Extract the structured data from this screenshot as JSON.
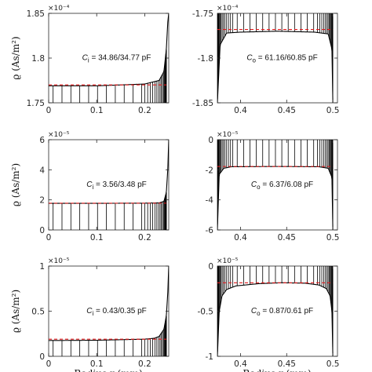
{
  "figure": {
    "ylabel": "ϱ (As/m²)",
    "xlabel_fragment": "Radius r (mm)"
  },
  "colors": {
    "line": "#000000",
    "avg": "#e31a1c",
    "axis": "#262626",
    "bg": "#ffffff"
  },
  "chart_data": [
    {
      "id": "inner-1",
      "type": "line",
      "column": "left",
      "row": 0,
      "xlim": [
        0,
        0.25
      ],
      "ylim": [
        1.75,
        1.85
      ],
      "exponent": "×10⁻⁴",
      "xticks": [
        "0",
        "0.1",
        "0.2"
      ],
      "xtick_values": [
        0,
        0.1,
        0.2
      ],
      "yticks": [
        "1.75",
        "1.8",
        "1.85"
      ],
      "ytick_values": [
        1.75,
        1.8,
        1.85
      ],
      "annotation": "Cᵢ = 34.86/34.77 pF",
      "annotation_var": "C",
      "annotation_sub": "i",
      "annotation_rest": " = 34.86/34.77 pF",
      "baseline": 1.75,
      "avg": 1.77,
      "avg_range": [
        0.0,
        0.245
      ],
      "series": [
        {
          "x": [
            0,
            0.1,
            0.2,
            0.23,
            0.24,
            0.245,
            0.248,
            0.25
          ],
          "y": [
            1.769,
            1.769,
            1.771,
            1.775,
            1.785,
            1.81,
            1.84,
            1.85
          ]
        }
      ]
    },
    {
      "id": "outer-1",
      "type": "line",
      "column": "right",
      "row": 0,
      "xlim": [
        0.375,
        0.505
      ],
      "ylim": [
        -1.85,
        -1.75
      ],
      "exponent": "×10⁻⁴",
      "xticks": [
        "0.4",
        "0.45",
        "0.5"
      ],
      "xtick_values": [
        0.4,
        0.45,
        0.5
      ],
      "yticks": [
        "-1.75",
        "-1.8",
        "-1.85"
      ],
      "ytick_values": [
        -1.75,
        -1.8,
        -1.85
      ],
      "annotation": "Cₒ = 61.16/60.85 pF",
      "annotation_var": "C",
      "annotation_sub": "o",
      "annotation_rest": " = 61.16/60.85 pF",
      "baseline": -1.75,
      "avg": -1.768,
      "avg_range": [
        0.375,
        0.5
      ],
      "series": [
        {
          "x": [
            0.375,
            0.378,
            0.385,
            0.4,
            0.44,
            0.48,
            0.495,
            0.499,
            0.5
          ],
          "y": [
            -1.85,
            -1.785,
            -1.772,
            -1.771,
            -1.77,
            -1.771,
            -1.773,
            -1.79,
            -1.85
          ]
        }
      ]
    },
    {
      "id": "inner-2",
      "type": "line",
      "column": "left",
      "row": 1,
      "xlim": [
        0,
        0.25
      ],
      "ylim": [
        0,
        6
      ],
      "exponent": "×10⁻⁵",
      "xticks": [
        "0",
        "0.1",
        "0.2"
      ],
      "xtick_values": [
        0,
        0.1,
        0.2
      ],
      "yticks": [
        "0",
        "2",
        "4",
        "6"
      ],
      "ytick_values": [
        0,
        2,
        4,
        6
      ],
      "annotation": "Cᵢ = 3.56/3.48 pF",
      "annotation_var": "C",
      "annotation_sub": "i",
      "annotation_rest": " = 3.56/3.48 pF",
      "baseline": 0,
      "avg": 1.78,
      "avg_range": [
        0.0,
        0.245
      ],
      "series": [
        {
          "x": [
            0,
            0.1,
            0.2,
            0.23,
            0.24,
            0.245,
            0.248,
            0.25
          ],
          "y": [
            1.77,
            1.77,
            1.78,
            1.8,
            1.9,
            2.5,
            4,
            6
          ]
        }
      ]
    },
    {
      "id": "outer-2",
      "type": "line",
      "column": "right",
      "row": 1,
      "xlim": [
        0.375,
        0.505
      ],
      "ylim": [
        -6,
        0
      ],
      "exponent": "×10⁻⁵",
      "xticks": [
        "0.4",
        "0.45",
        "0.5"
      ],
      "xtick_values": [
        0.4,
        0.45,
        0.5
      ],
      "yticks": [
        "0",
        "-2",
        "-4",
        "-6"
      ],
      "ytick_values": [
        0,
        -2,
        -4,
        -6
      ],
      "annotation": "Cₒ = 6.37/6.08 pF",
      "annotation_var": "C",
      "annotation_sub": "o",
      "annotation_rest": " = 6.37/6.08 pF",
      "baseline": 0,
      "avg": -1.78,
      "avg_range": [
        0.375,
        0.5
      ],
      "series": [
        {
          "x": [
            0.375,
            0.377,
            0.382,
            0.39,
            0.44,
            0.485,
            0.495,
            0.499,
            0.5
          ],
          "y": [
            -6,
            -2.3,
            -1.9,
            -1.8,
            -1.78,
            -1.8,
            -1.9,
            -2.5,
            -6
          ]
        }
      ]
    },
    {
      "id": "inner-3",
      "type": "line",
      "column": "left",
      "row": 2,
      "xlim": [
        0,
        0.25
      ],
      "ylim": [
        0,
        1
      ],
      "exponent": "×10⁻⁵",
      "xticks": [
        "0",
        "0.1",
        "0.2"
      ],
      "xtick_values": [
        0,
        0.1,
        0.2
      ],
      "yticks": [
        "0",
        "0.5",
        "1"
      ],
      "ytick_values": [
        0,
        0.5,
        1
      ],
      "annotation": "Cᵢ = 0.43/0.35 pF",
      "annotation_var": "C",
      "annotation_sub": "i",
      "annotation_rest": " = 0.43/0.35 pF",
      "baseline": 0,
      "avg": 0.19,
      "avg_range": [
        0.0,
        0.245
      ],
      "series": [
        {
          "x": [
            0,
            0.1,
            0.2,
            0.22,
            0.23,
            0.24,
            0.245,
            0.248,
            0.25
          ],
          "y": [
            0.175,
            0.178,
            0.19,
            0.2,
            0.22,
            0.3,
            0.45,
            0.7,
            1.0
          ]
        }
      ]
    },
    {
      "id": "outer-3",
      "type": "line",
      "column": "right",
      "row": 2,
      "xlim": [
        0.375,
        0.505
      ],
      "ylim": [
        -1,
        0
      ],
      "exponent": "×10⁻⁵",
      "xticks": [
        "0.4",
        "0.45",
        "0.5"
      ],
      "xtick_values": [
        0.4,
        0.45,
        0.5
      ],
      "yticks": [
        "0",
        "-0.5",
        "-1"
      ],
      "ytick_values": [
        0,
        -0.5,
        -1
      ],
      "annotation": "Cₒ = 0.87/0.61 pF",
      "annotation_var": "C",
      "annotation_sub": "o",
      "annotation_rest": " = 0.87/0.61 pF",
      "baseline": 0,
      "avg": -0.185,
      "avg_range": [
        0.375,
        0.5
      ],
      "series": [
        {
          "x": [
            0.375,
            0.377,
            0.38,
            0.385,
            0.395,
            0.42,
            0.445,
            0.47,
            0.485,
            0.493,
            0.497,
            0.499,
            0.5
          ],
          "y": [
            -1.0,
            -0.5,
            -0.33,
            -0.26,
            -0.22,
            -0.195,
            -0.185,
            -0.19,
            -0.21,
            -0.25,
            -0.33,
            -0.5,
            -1.0
          ]
        }
      ]
    }
  ]
}
